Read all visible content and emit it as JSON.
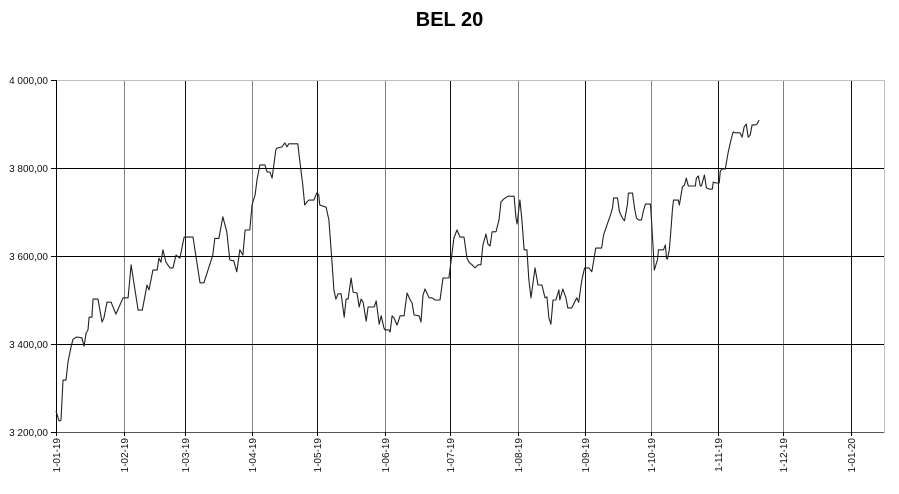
{
  "chart_data": {
    "type": "line",
    "title": "BEL 20",
    "xlabel": "",
    "ylabel": "",
    "ylim": [
      3200,
      4000
    ],
    "yticks": [
      3200,
      3400,
      3600,
      3800,
      4000
    ],
    "ytick_labels": [
      "3 200,00",
      "3 400,00",
      "3 600,00",
      "3 800,00",
      "4 000,00"
    ],
    "xlim_days": [
      0,
      380
    ],
    "xticks_days": [
      0,
      31,
      59,
      90,
      120,
      151,
      181,
      212,
      243,
      273,
      304,
      334,
      365
    ],
    "xtick_labels": [
      "1-01-19",
      "1-02-19",
      "1-03-19",
      "1-04-19",
      "1-05-19",
      "1-06-19",
      "1-07-19",
      "1-08-19",
      "1-09-19",
      "1-10-19",
      "1-11-19",
      "1-12-19",
      "1-01-20"
    ],
    "grid": true,
    "legend": null,
    "series": [
      {
        "name": "BEL 20",
        "color": "#222222",
        "points_day_value": [
          [
            0,
            3248
          ],
          [
            1.4,
            3225
          ],
          [
            2.3,
            3227
          ],
          [
            3.2,
            3318
          ],
          [
            4.6,
            3318
          ],
          [
            5.5,
            3359
          ],
          [
            6.9,
            3393
          ],
          [
            7.8,
            3411
          ],
          [
            9.6,
            3416
          ],
          [
            11.9,
            3414
          ],
          [
            12.9,
            3395
          ],
          [
            13.8,
            3425
          ],
          [
            14.7,
            3432
          ],
          [
            15.2,
            3461
          ],
          [
            16.5,
            3461
          ],
          [
            17.0,
            3502
          ],
          [
            19.3,
            3502
          ],
          [
            21.1,
            3450
          ],
          [
            22.0,
            3459
          ],
          [
            23.4,
            3495
          ],
          [
            25.3,
            3495
          ],
          [
            27.5,
            3468
          ],
          [
            29.4,
            3489
          ],
          [
            30.8,
            3505
          ],
          [
            33.1,
            3505
          ],
          [
            34.5,
            3580
          ],
          [
            37.7,
            3477
          ],
          [
            39.6,
            3477
          ],
          [
            41.8,
            3534
          ],
          [
            42.7,
            3523
          ],
          [
            44.5,
            3568
          ],
          [
            46.4,
            3568
          ],
          [
            47.3,
            3595
          ],
          [
            48.2,
            3586
          ],
          [
            49.1,
            3614
          ],
          [
            50.5,
            3586
          ],
          [
            52.3,
            3573
          ],
          [
            53.7,
            3573
          ],
          [
            55.1,
            3602
          ],
          [
            56.9,
            3595
          ],
          [
            58.8,
            3643
          ],
          [
            62.9,
            3643
          ],
          [
            66.1,
            3539
          ],
          [
            67.9,
            3539
          ],
          [
            72.0,
            3602
          ],
          [
            72.9,
            3640
          ],
          [
            74.8,
            3640
          ],
          [
            76.6,
            3689
          ],
          [
            78.4,
            3655
          ],
          [
            79.8,
            3591
          ],
          [
            81.6,
            3589
          ],
          [
            83.0,
            3564
          ],
          [
            84.4,
            3614
          ],
          [
            85.8,
            3602
          ],
          [
            86.8,
            3659
          ],
          [
            89.0,
            3659
          ],
          [
            90.0,
            3716
          ],
          [
            91.4,
            3739
          ],
          [
            92.3,
            3773
          ],
          [
            93.6,
            3807
          ],
          [
            95.9,
            3807
          ],
          [
            96.9,
            3791
          ],
          [
            98.2,
            3791
          ],
          [
            99.2,
            3777
          ],
          [
            100.9,
            3841
          ],
          [
            101.4,
            3845
          ],
          [
            103.7,
            3848
          ],
          [
            105.1,
            3857
          ],
          [
            106.0,
            3848
          ],
          [
            106.9,
            3855
          ],
          [
            111.0,
            3855
          ],
          [
            111.9,
            3818
          ],
          [
            113.3,
            3761
          ],
          [
            114.2,
            3716
          ],
          [
            115.2,
            3723
          ],
          [
            116.1,
            3727
          ],
          [
            118.4,
            3727
          ],
          [
            119.7,
            3743
          ],
          [
            120.6,
            3739
          ],
          [
            121.1,
            3716
          ],
          [
            124.0,
            3711
          ],
          [
            125.3,
            3682
          ],
          [
            126.7,
            3586
          ],
          [
            127.6,
            3523
          ],
          [
            128.5,
            3502
          ],
          [
            129.5,
            3514
          ],
          [
            130.9,
            3514
          ],
          [
            132.3,
            3461
          ],
          [
            133.2,
            3502
          ],
          [
            134.1,
            3502
          ],
          [
            135.5,
            3550
          ],
          [
            136.4,
            3518
          ],
          [
            138.2,
            3516
          ],
          [
            139.2,
            3484
          ],
          [
            140.1,
            3502
          ],
          [
            141.0,
            3495
          ],
          [
            142.4,
            3452
          ],
          [
            143.3,
            3484
          ],
          [
            146.1,
            3484
          ],
          [
            147.0,
            3498
          ],
          [
            148.4,
            3445
          ],
          [
            149.3,
            3464
          ],
          [
            150.6,
            3436
          ],
          [
            151.1,
            3432
          ],
          [
            152.9,
            3432
          ],
          [
            153.4,
            3427
          ],
          [
            154.3,
            3464
          ],
          [
            155.2,
            3459
          ],
          [
            156.6,
            3443
          ],
          [
            158.0,
            3464
          ],
          [
            159.8,
            3464
          ],
          [
            160.3,
            3482
          ],
          [
            161.2,
            3516
          ],
          [
            162.6,
            3500
          ],
          [
            163.5,
            3493
          ],
          [
            164.4,
            3466
          ],
          [
            166.7,
            3464
          ],
          [
            167.6,
            3450
          ],
          [
            168.5,
            3511
          ],
          [
            169.4,
            3525
          ],
          [
            171.3,
            3505
          ],
          [
            172.6,
            3505
          ],
          [
            174.0,
            3500
          ],
          [
            176.3,
            3500
          ],
          [
            177.7,
            3550
          ],
          [
            180.4,
            3550
          ],
          [
            181.3,
            3586
          ],
          [
            182.7,
            3641
          ],
          [
            184.1,
            3659
          ],
          [
            185.5,
            3643
          ],
          [
            187.3,
            3643
          ],
          [
            188.7,
            3595
          ],
          [
            189.6,
            3586
          ],
          [
            191.0,
            3580
          ],
          [
            192.4,
            3573
          ],
          [
            193.8,
            3580
          ],
          [
            195.1,
            3580
          ],
          [
            196.0,
            3625
          ],
          [
            197.4,
            3650
          ],
          [
            198.3,
            3627
          ],
          [
            199.3,
            3623
          ],
          [
            200.2,
            3655
          ],
          [
            202.0,
            3655
          ],
          [
            203.4,
            3682
          ],
          [
            204.3,
            3723
          ],
          [
            205.7,
            3730
          ],
          [
            207.5,
            3736
          ],
          [
            210.3,
            3736
          ],
          [
            211.2,
            3686
          ],
          [
            211.7,
            3673
          ],
          [
            213.0,
            3727
          ],
          [
            213.9,
            3682
          ],
          [
            214.9,
            3614
          ],
          [
            216.2,
            3614
          ],
          [
            217.1,
            3545
          ],
          [
            218.1,
            3505
          ],
          [
            219.9,
            3573
          ],
          [
            221.3,
            3534
          ],
          [
            223.1,
            3534
          ],
          [
            224.5,
            3505
          ],
          [
            225.4,
            3507
          ],
          [
            226.3,
            3459
          ],
          [
            227.2,
            3445
          ],
          [
            228.2,
            3500
          ],
          [
            229.5,
            3500
          ],
          [
            230.9,
            3523
          ],
          [
            231.3,
            3500
          ],
          [
            232.7,
            3525
          ],
          [
            234.1,
            3505
          ],
          [
            235.0,
            3482
          ],
          [
            236.8,
            3482
          ],
          [
            239.1,
            3505
          ],
          [
            240.0,
            3495
          ],
          [
            241.4,
            3545
          ],
          [
            242.7,
            3573
          ],
          [
            244.6,
            3573
          ],
          [
            246.0,
            3564
          ],
          [
            247.3,
            3602
          ],
          [
            247.8,
            3618
          ],
          [
            250.5,
            3618
          ],
          [
            251.4,
            3648
          ],
          [
            252.8,
            3668
          ],
          [
            254.6,
            3693
          ],
          [
            255.5,
            3709
          ],
          [
            256.0,
            3732
          ],
          [
            257.8,
            3732
          ],
          [
            258.7,
            3700
          ],
          [
            260.1,
            3686
          ],
          [
            261.0,
            3680
          ],
          [
            262.4,
            3718
          ],
          [
            262.8,
            3743
          ],
          [
            264.7,
            3743
          ],
          [
            265.6,
            3709
          ],
          [
            266.5,
            3686
          ],
          [
            267.4,
            3682
          ],
          [
            268.8,
            3682
          ],
          [
            269.7,
            3702
          ],
          [
            270.6,
            3718
          ],
          [
            272.9,
            3718
          ],
          [
            273.4,
            3682
          ],
          [
            274.3,
            3607
          ],
          [
            274.7,
            3568
          ],
          [
            276.1,
            3591
          ],
          [
            276.6,
            3614
          ],
          [
            278.9,
            3614
          ],
          [
            279.8,
            3625
          ],
          [
            280.3,
            3595
          ],
          [
            280.7,
            3593
          ],
          [
            281.6,
            3614
          ],
          [
            282.5,
            3670
          ],
          [
            283.0,
            3705
          ],
          [
            283.5,
            3727
          ],
          [
            285.7,
            3727
          ],
          [
            286.2,
            3716
          ],
          [
            287.6,
            3757
          ],
          [
            288.5,
            3761
          ],
          [
            289.4,
            3777
          ],
          [
            290.3,
            3759
          ],
          [
            292.2,
            3759
          ],
          [
            293.5,
            3759
          ],
          [
            294.0,
            3777
          ],
          [
            294.9,
            3782
          ],
          [
            295.8,
            3759
          ],
          [
            296.3,
            3759
          ],
          [
            297.7,
            3784
          ],
          [
            298.6,
            3755
          ],
          [
            299.9,
            3752
          ],
          [
            301.3,
            3752
          ],
          [
            301.8,
            3768
          ],
          [
            303.1,
            3766
          ],
          [
            304.5,
            3766
          ],
          [
            305.0,
            3793
          ],
          [
            305.9,
            3798
          ],
          [
            307.3,
            3798
          ],
          [
            308.6,
            3836
          ],
          [
            310.0,
            3866
          ],
          [
            310.9,
            3882
          ],
          [
            311.8,
            3880
          ],
          [
            314.1,
            3880
          ],
          [
            315.0,
            3870
          ],
          [
            315.9,
            3893
          ],
          [
            316.9,
            3900
          ],
          [
            317.8,
            3870
          ],
          [
            318.7,
            3875
          ],
          [
            319.6,
            3898
          ],
          [
            321.0,
            3898
          ],
          [
            321.9,
            3900
          ],
          [
            322.8,
            3909
          ]
        ]
      }
    ]
  }
}
